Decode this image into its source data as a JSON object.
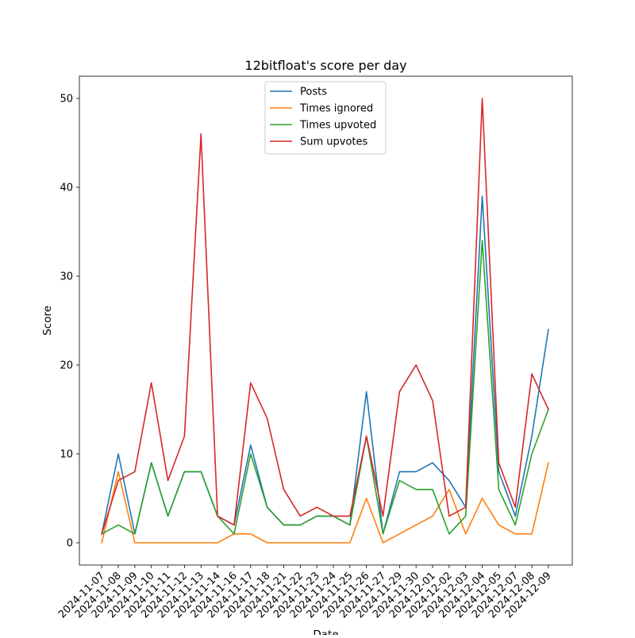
{
  "chart_data": {
    "type": "line",
    "title": "12bitfloat's score per day",
    "xlabel": "Date",
    "ylabel": "Score",
    "ylim": [
      -2.5,
      52.5
    ],
    "yticks": [
      0,
      10,
      20,
      30,
      40,
      50
    ],
    "grid": false,
    "legend_position": "top-center",
    "categories": [
      "2024-11-07",
      "2024-11-08",
      "2024-11-09",
      "2024-11-10",
      "2024-11-11",
      "2024-11-12",
      "2024-11-13",
      "2024-11-14",
      "2024-11-16",
      "2024-11-17",
      "2024-11-18",
      "2024-11-21",
      "2024-11-22",
      "2024-11-23",
      "2024-11-24",
      "2024-11-25",
      "2024-11-26",
      "2024-11-27",
      "2024-11-29",
      "2024-11-30",
      "2024-12-01",
      "2024-12-02",
      "2024-12-03",
      "2024-12-04",
      "2024-12-05",
      "2024-12-07",
      "2024-12-08",
      "2024-12-09"
    ],
    "series": [
      {
        "name": "Posts",
        "color": "#1f77b4",
        "values": [
          1,
          10,
          1,
          9,
          3,
          8,
          8,
          3,
          2,
          11,
          4,
          2,
          2,
          3,
          3,
          2,
          17,
          1,
          8,
          8,
          9,
          7,
          4,
          39,
          8,
          3,
          12,
          24
        ]
      },
      {
        "name": "Times ignored",
        "color": "#ff7f0e",
        "values": [
          0,
          8,
          0,
          0,
          0,
          0,
          0,
          0,
          1,
          1,
          0,
          0,
          0,
          0,
          0,
          0,
          5,
          0,
          1,
          2,
          3,
          6,
          1,
          5,
          2,
          1,
          1,
          9
        ]
      },
      {
        "name": "Times upvoted",
        "color": "#2ca02c",
        "values": [
          1,
          2,
          1,
          9,
          3,
          8,
          8,
          3,
          1,
          10,
          4,
          2,
          2,
          3,
          3,
          2,
          12,
          1,
          7,
          6,
          6,
          1,
          3,
          34,
          6,
          2,
          10,
          15
        ]
      },
      {
        "name": "Sum upvotes",
        "color": "#d62728",
        "values": [
          1,
          7,
          8,
          18,
          7,
          12,
          46,
          3,
          2,
          18,
          14,
          6,
          3,
          4,
          3,
          3,
          12,
          3,
          17,
          20,
          16,
          3,
          4,
          50,
          9,
          4,
          19,
          15
        ]
      }
    ]
  }
}
